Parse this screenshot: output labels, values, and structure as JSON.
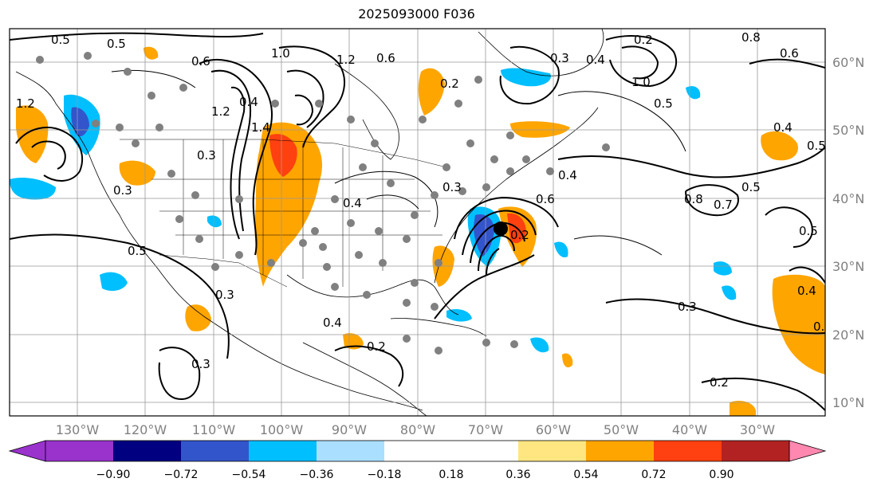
{
  "title": "2025093000 F036",
  "lat_labels": [
    "60°N",
    "50°N",
    "40°N",
    "30°N",
    "20°N",
    "10°N"
  ],
  "lon_labels": [
    "130°W",
    "120°W",
    "110°W",
    "100°W",
    "90°W",
    "80°W",
    "70°W",
    "60°W",
    "50°W",
    "40°W",
    "30°W"
  ],
  "colorbar": {
    "ticks": [
      "−0.90",
      "−0.72",
      "−0.54",
      "−0.36",
      "−0.18",
      "0.18",
      "0.36",
      "0.54",
      "0.72",
      "0.90"
    ],
    "colors": [
      "#9933cc",
      "#000080",
      "#3355cc",
      "#00bfff",
      "#aadfff",
      "#ffffff",
      "#ffe680",
      "#ffa500",
      "#ff4010",
      "#b22222",
      "#ff88b0"
    ]
  },
  "contour_labels": [
    "0.5",
    "0.5",
    "0.6",
    "1.0",
    "1.2",
    "0.6",
    "0.3",
    "0.2",
    "0.4",
    "0.2",
    "0.8",
    "0.6",
    "1.0",
    "0.5",
    "0.4",
    "1.2",
    "1.4",
    "0.3",
    "1.2",
    "0.4",
    "0.3",
    "0.5",
    "0.4",
    "0.6",
    "0.8",
    "0.4",
    "0.5",
    "0.5",
    "0.7",
    "0.5",
    "0.4",
    "0.3",
    "0.3",
    "0.4",
    "0.2",
    "0.3",
    "0.2",
    "0.3",
    "0.2",
    "0.3"
  ],
  "colors": {
    "positive_mid": "#ffa500",
    "positive_high": "#ff4010",
    "negative_mid": "#00bfff",
    "negative_high": "#3355cc",
    "observations": "#808080",
    "storm_center": "#000000"
  }
}
